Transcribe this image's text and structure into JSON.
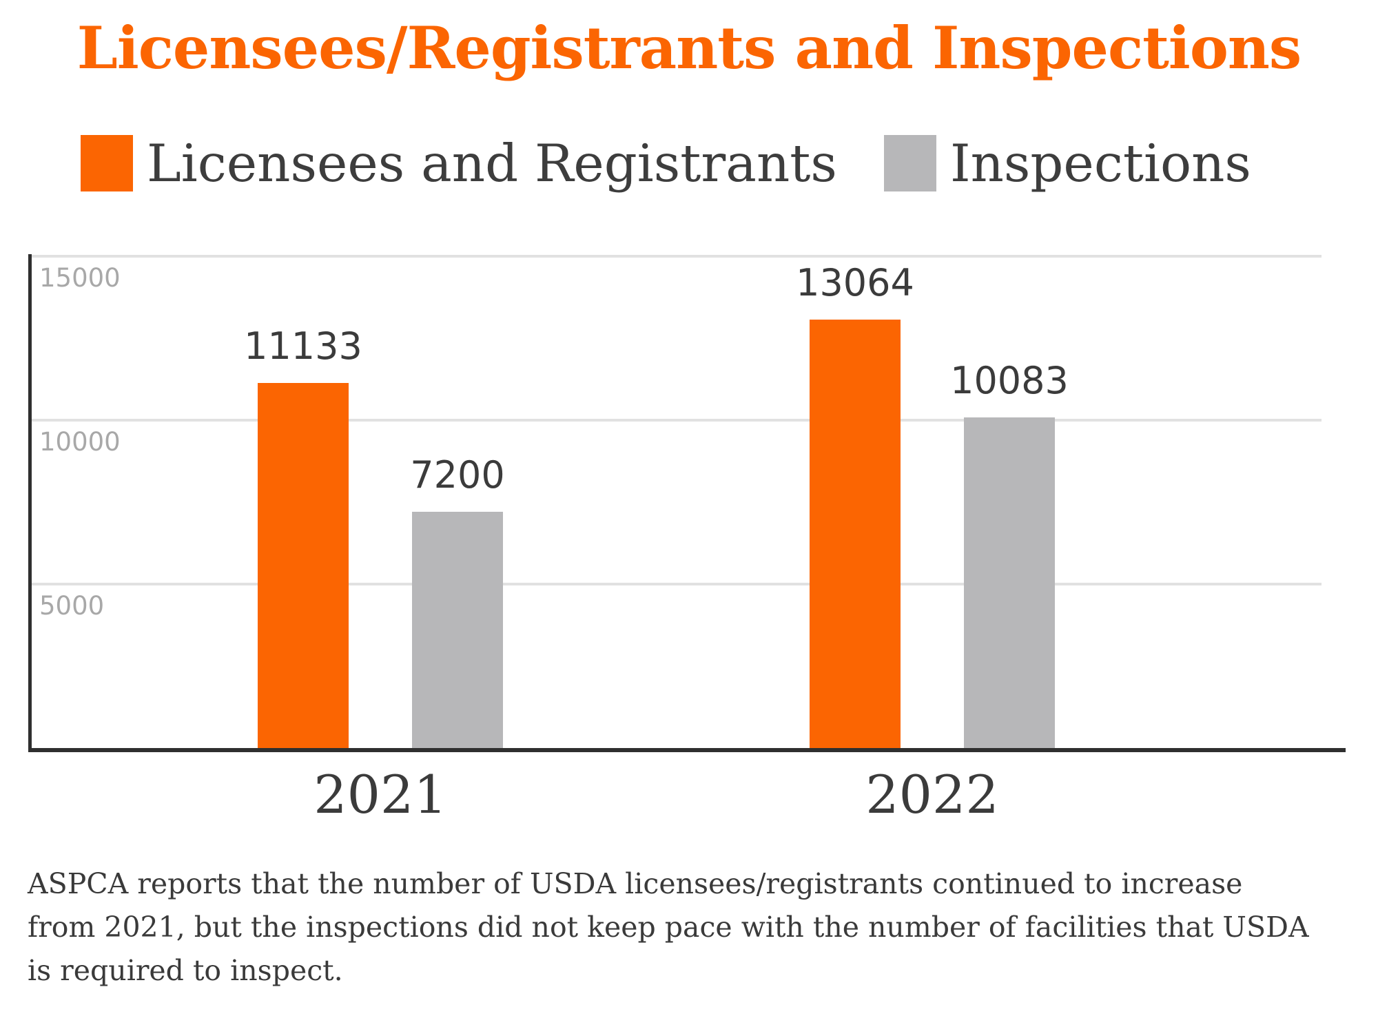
{
  "title": "Licensees/Registrants and Inspections",
  "colors": {
    "accent_orange": "#FB6502",
    "bar_gray": "#B7B7B9",
    "text_dark": "#3B3B3B",
    "tick_gray": "#A8A8A8",
    "grid": "#E1E1E1",
    "axis": "#2F2F2F"
  },
  "chart_data": {
    "type": "bar",
    "categories": [
      "2021",
      "2022"
    ],
    "series": [
      {
        "name": "Licensees and Registrants",
        "color": "#FB6502",
        "values": [
          11133,
          13064
        ]
      },
      {
        "name": "Inspections",
        "color": "#B7B7B9",
        "values": [
          7200,
          10083
        ]
      }
    ],
    "yticks": [
      5000,
      10000,
      15000
    ],
    "ylim": [
      0,
      15000
    ],
    "grid": true,
    "legend_position": "top",
    "value_labels": true
  },
  "caption": {
    "lines": [
      "ASPCA reports that the number of USDA licensees/registrants continued to increase",
      "from 2021, but the inspections did not keep pace with the number of facilities that USDA",
      "is required to inspect."
    ]
  }
}
